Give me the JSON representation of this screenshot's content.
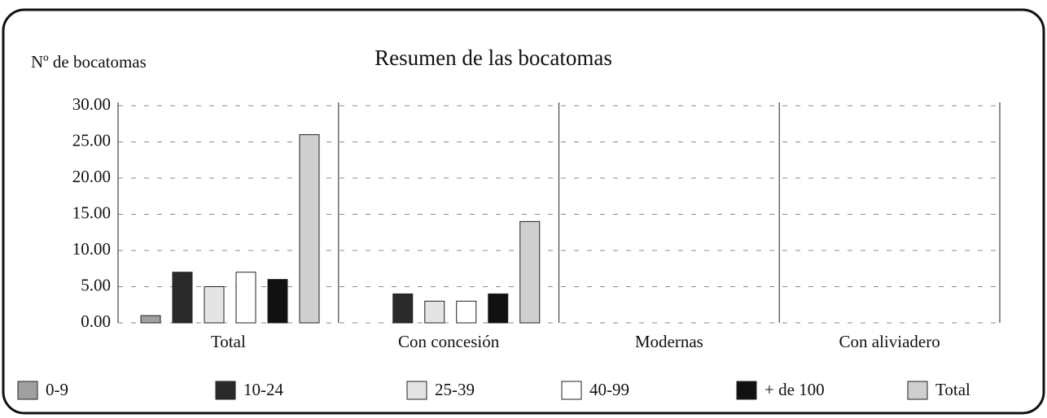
{
  "chart_data": {
    "type": "bar",
    "title": "Resumen de las bocatomas",
    "y_label": "Nº de bocatomas",
    "categories": [
      "Total",
      "Con concesión",
      "Modernas",
      "Con aliviadero"
    ],
    "series": [
      {
        "name": "0-9",
        "color": "#a0a0a0",
        "values": [
          1,
          0,
          0,
          0
        ]
      },
      {
        "name": "10-24",
        "color": "#2a2a2a",
        "values": [
          7,
          4,
          0,
          0
        ]
      },
      {
        "name": "25-39",
        "color": "#e4e4e4",
        "values": [
          5,
          3,
          0,
          0
        ]
      },
      {
        "name": "40-99",
        "color": "#ffffff",
        "values": [
          7,
          3,
          0,
          0
        ]
      },
      {
        "name": "+ de 100",
        "color": "#111111",
        "values": [
          6,
          4,
          0,
          0
        ]
      },
      {
        "name": "Total",
        "color": "#cfcfcf",
        "values": [
          26,
          14,
          0,
          0
        ]
      }
    ],
    "ylim": [
      0,
      30
    ],
    "yticks": [
      {
        "value": 0,
        "label": "0.00"
      },
      {
        "value": 5,
        "label": "5.00"
      },
      {
        "value": 10,
        "label": "10.00"
      },
      {
        "value": 15,
        "label": "15.00"
      },
      {
        "value": 20,
        "label": "20.00"
      },
      {
        "value": 25,
        "label": "25.00"
      },
      {
        "value": 30,
        "label": "30.00"
      }
    ],
    "grid": true,
    "legend": "bottom"
  }
}
